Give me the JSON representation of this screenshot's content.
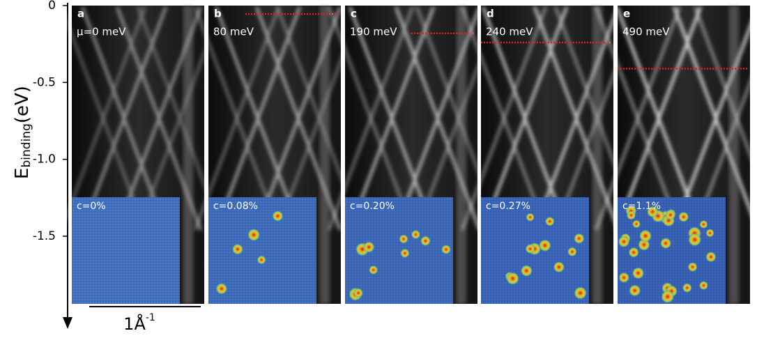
{
  "y_axis": {
    "label": "E",
    "label_subscript": "binding",
    "label_unit": "(eV)",
    "ylim": [
      -1.94,
      0
    ],
    "yticks": [
      0,
      -0.5,
      {
        "value": -1,
        "label": "-1.0"
      },
      -1.5
    ]
  },
  "scale_bar": {
    "label": "1Å",
    "exponent": "-1"
  },
  "panels": [
    {
      "letter": "a",
      "potential": "μ=0 meV",
      "concentration": "c=0%"
    },
    {
      "letter": "b",
      "potential": "80 meV",
      "concentration": "c=0.08%",
      "fermi_level": -0.055
    },
    {
      "letter": "c",
      "potential": "190 meV",
      "concentration": "c=0.20%",
      "fermi_level": -0.18
    },
    {
      "letter": "d",
      "potential": "240 meV",
      "concentration": "c=0.27%",
      "fermi_level": -0.24
    },
    {
      "letter": "e",
      "potential": "490 meV",
      "concentration": "c=1.1%",
      "fermi_level": -0.41
    }
  ]
}
